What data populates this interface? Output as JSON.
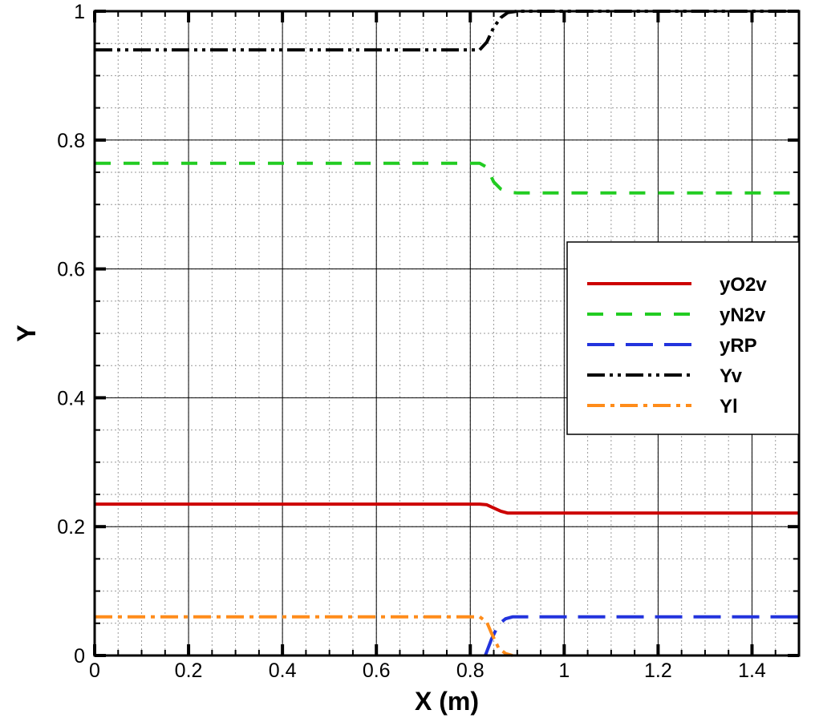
{
  "chart_data": {
    "type": "line",
    "title": "",
    "xlabel": "X (m)",
    "ylabel": "Y",
    "xlim": [
      0,
      1.5
    ],
    "ylim": [
      0,
      1
    ],
    "grid": true,
    "legend_position": "right",
    "x_ticks": [
      0,
      0.2,
      0.4,
      0.6,
      0.8,
      1,
      1.2,
      1.4
    ],
    "x_tick_labels": [
      "0",
      "0.2",
      "0.4",
      "0.6",
      "0.8",
      "1",
      "1.2",
      "1.4"
    ],
    "y_ticks": [
      0,
      0.2,
      0.4,
      0.6,
      0.8,
      1
    ],
    "y_tick_labels": [
      "0",
      "0.2",
      "0.4",
      "0.6",
      "0.8",
      "1"
    ],
    "series": [
      {
        "name": "yO2v",
        "color": "#cc0000",
        "dash": "solid",
        "x": [
          0,
          0.82,
          0.835,
          0.85,
          0.865,
          0.88,
          0.9,
          1.5
        ],
        "y": [
          0.235,
          0.235,
          0.234,
          0.229,
          0.224,
          0.221,
          0.221,
          0.221
        ]
      },
      {
        "name": "yN2v",
        "color": "#22cc22",
        "dash": "dash",
        "x": [
          0,
          0.82,
          0.835,
          0.85,
          0.865,
          0.88,
          0.9,
          1.5
        ],
        "y": [
          0.764,
          0.764,
          0.758,
          0.735,
          0.724,
          0.719,
          0.718,
          0.718
        ]
      },
      {
        "name": "yRP",
        "color": "#2233dd",
        "dash": "longdash",
        "x": [
          0.832,
          0.845,
          0.86,
          0.875,
          0.89,
          1.5
        ],
        "y": [
          0,
          0.025,
          0.048,
          0.057,
          0.06,
          0.06
        ]
      },
      {
        "name": "Yv",
        "color": "#000000",
        "dash": "dashdotdot",
        "x": [
          0,
          0.82,
          0.835,
          0.85,
          0.865,
          0.88,
          0.9,
          1.5
        ],
        "y": [
          0.94,
          0.94,
          0.952,
          0.975,
          0.99,
          0.998,
          1,
          1
        ]
      },
      {
        "name": "Yl",
        "color": "#ff8c1a",
        "dash": "dashdot",
        "x": [
          0,
          0.82,
          0.835,
          0.845,
          0.86,
          0.875,
          0.89
        ],
        "y": [
          0.06,
          0.06,
          0.052,
          0.035,
          0.012,
          0.003,
          0
        ]
      }
    ]
  }
}
